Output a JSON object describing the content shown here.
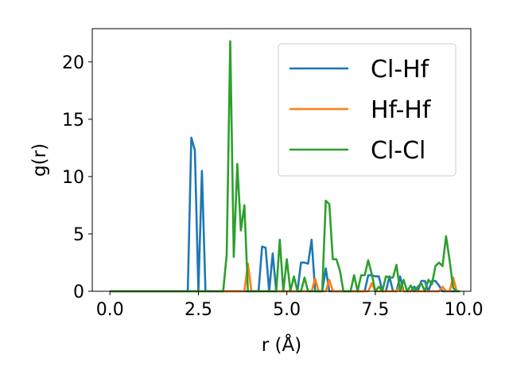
{
  "chart_data": {
    "type": "line",
    "xlabel": "r (Å)",
    "ylabel": "g(r)",
    "xlim": [
      -0.5,
      10.2
    ],
    "ylim": [
      0,
      22.9
    ],
    "xticks": [
      0.0,
      2.5,
      5.0,
      7.5,
      10.0
    ],
    "xtick_labels": [
      "0.0",
      "2.5",
      "5.0",
      "7.5",
      "10.0"
    ],
    "yticks": [
      0,
      5,
      10,
      15,
      20
    ],
    "ytick_labels": [
      "0",
      "5",
      "10",
      "15",
      "20"
    ],
    "grid": false,
    "legend_position": "top-right",
    "series": [
      {
        "name": "Cl-Hf",
        "color": "#1f77b4",
        "x": [
          0.0,
          2.2,
          2.3,
          2.4,
          2.5,
          2.6,
          2.7,
          4.2,
          4.3,
          4.4,
          4.5,
          4.6,
          4.7,
          4.8,
          5.3,
          5.4,
          5.5,
          5.6,
          5.7,
          5.8,
          5.9,
          6.0,
          6.1,
          6.2,
          6.3,
          7.1,
          7.2,
          7.3,
          7.4,
          7.5,
          7.6,
          7.7,
          7.8,
          7.9,
          8.0,
          8.1,
          8.2,
          8.3,
          8.5,
          8.6,
          8.7,
          8.8,
          8.9,
          9.0,
          9.1,
          9.2,
          9.3,
          9.4,
          9.5,
          9.6,
          9.8
        ],
        "y": [
          0.0,
          0.0,
          13.4,
          12.3,
          0.0,
          10.5,
          0.0,
          0.0,
          3.9,
          3.8,
          0.0,
          3.3,
          0.0,
          0.0,
          0.0,
          2.5,
          2.5,
          2.4,
          4.5,
          0.0,
          0.0,
          0.0,
          2.0,
          0.0,
          0.0,
          0.0,
          0.0,
          1.4,
          1.4,
          1.3,
          1.3,
          0.0,
          0.0,
          1.3,
          0.0,
          0.0,
          1.3,
          0.0,
          0.0,
          0.4,
          0.0,
          0.9,
          0.9,
          0.0,
          0.9,
          0.9,
          0.5,
          0.0,
          0.0,
          0.0,
          0.0
        ]
      },
      {
        "name": "Hf-Hf",
        "color": "#ff7f0e",
        "x": [
          0.0,
          3.8,
          3.9,
          4.0,
          5.7,
          5.8,
          5.9,
          6.1,
          6.2,
          6.3,
          7.3,
          7.4,
          7.5,
          8.1,
          8.2,
          8.3,
          9.3,
          9.4,
          9.5,
          9.6,
          9.7,
          9.8
        ],
        "y": [
          0.0,
          0.0,
          2.4,
          0.0,
          0.0,
          1.1,
          0.0,
          0.0,
          1.0,
          0.0,
          0.0,
          0.7,
          0.0,
          0.0,
          0.6,
          0.0,
          0.0,
          0.4,
          0.0,
          0.0,
          1.2,
          0.0
        ]
      },
      {
        "name": "Cl-Cl",
        "color": "#2ca02c",
        "x": [
          0.0,
          3.2,
          3.3,
          3.4,
          3.5,
          3.6,
          3.7,
          3.8,
          3.9,
          4.0,
          4.6,
          4.7,
          4.8,
          4.9,
          5.0,
          5.1,
          5.2,
          5.3,
          5.4,
          5.5,
          5.6,
          5.7,
          5.8,
          5.9,
          6.0,
          6.1,
          6.2,
          6.3,
          6.4,
          6.5,
          6.6,
          6.7,
          6.8,
          6.9,
          7.0,
          7.1,
          7.2,
          7.3,
          7.4,
          7.5,
          7.6,
          7.7,
          7.8,
          7.9,
          8.0,
          8.1,
          8.2,
          8.3,
          8.4,
          8.5,
          8.6,
          8.7,
          8.8,
          8.9,
          9.0,
          9.1,
          9.2,
          9.3,
          9.4,
          9.5,
          9.6,
          9.7,
          9.8,
          9.9
        ],
        "y": [
          0.0,
          0.0,
          3.2,
          21.8,
          3.0,
          11.1,
          5.3,
          7.5,
          0.0,
          0.0,
          0.0,
          0.0,
          4.5,
          0.0,
          2.8,
          0.0,
          1.3,
          0.0,
          0.0,
          1.2,
          0.0,
          0.0,
          0.0,
          0.0,
          0.0,
          7.9,
          7.6,
          2.8,
          2.8,
          1.8,
          0.0,
          0.0,
          0.0,
          1.4,
          0.0,
          1.4,
          1.4,
          2.7,
          1.5,
          0.0,
          0.4,
          0.0,
          1.3,
          1.2,
          1.2,
          2.3,
          0.0,
          1.0,
          0.0,
          0.5,
          0.0,
          0.4,
          0.7,
          0.0,
          1.0,
          0.6,
          2.2,
          2.5,
          2.2,
          4.8,
          2.7,
          0.3,
          0.0,
          0.0
        ]
      }
    ]
  }
}
